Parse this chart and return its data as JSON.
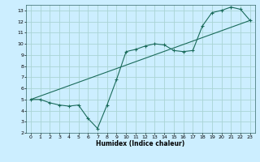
{
  "title": "",
  "xlabel": "Humidex (Indice chaleur)",
  "ylabel": "",
  "bg_color": "#cceeff",
  "grid_color": "#aad4d4",
  "line_color": "#1a6b5a",
  "xlim": [
    -0.5,
    23.5
  ],
  "ylim": [
    2,
    13.5
  ],
  "xticks": [
    0,
    1,
    2,
    3,
    4,
    5,
    6,
    7,
    8,
    9,
    10,
    11,
    12,
    13,
    14,
    15,
    16,
    17,
    18,
    19,
    20,
    21,
    22,
    23
  ],
  "yticks": [
    2,
    3,
    4,
    5,
    6,
    7,
    8,
    9,
    10,
    11,
    12,
    13
  ],
  "line1_x": [
    0,
    1,
    2,
    3,
    4,
    5,
    6,
    7,
    8,
    9,
    10,
    11,
    12,
    13,
    14,
    15,
    16,
    17,
    18,
    19,
    20,
    21,
    22,
    23
  ],
  "line1_y": [
    5.0,
    5.0,
    4.7,
    4.5,
    4.4,
    4.5,
    3.3,
    2.4,
    4.5,
    6.8,
    9.3,
    9.5,
    9.8,
    10.0,
    9.9,
    9.4,
    9.3,
    9.4,
    11.6,
    12.8,
    13.0,
    13.3,
    13.1,
    12.1
  ],
  "line2_x": [
    0,
    23
  ],
  "line2_y": [
    5.0,
    12.1
  ],
  "tick_fontsize": 4.5,
  "xlabel_fontsize": 5.5,
  "linewidth": 0.8,
  "markersize": 3.0
}
